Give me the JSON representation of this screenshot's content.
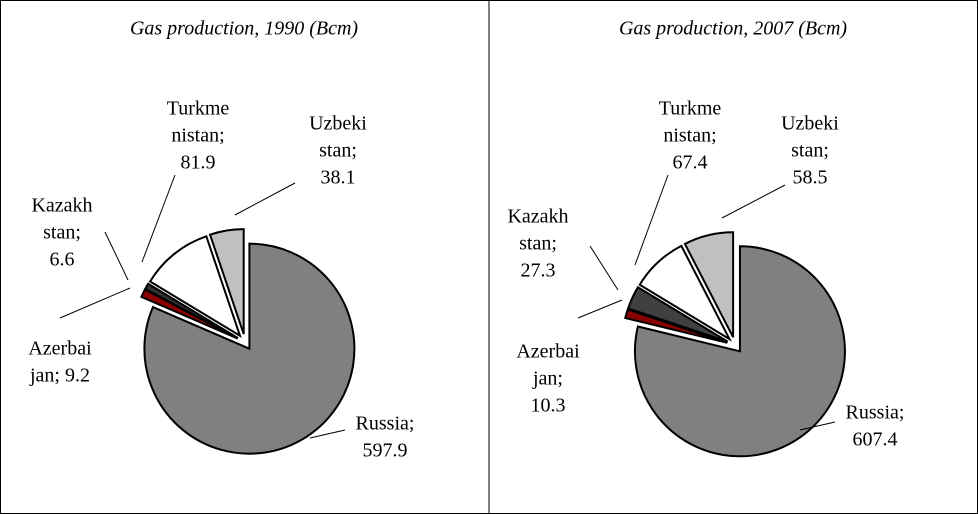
{
  "chart_data": [
    {
      "type": "pie",
      "title": "Gas production, 1990 (Bcm)",
      "values": [
        597.9,
        9.2,
        6.6,
        81.9,
        38.1
      ],
      "value_labels": [
        [
          "Russia;",
          "597.9"
        ],
        [
          "Azerbai",
          "jan; 9.2"
        ],
        [
          "Kazakh",
          "stan;",
          "6.6"
        ],
        [
          "Turkme",
          "nistan;",
          "81.9"
        ],
        [
          "Uzbeki",
          "stan;",
          "38.1"
        ]
      ],
      "colors": [
        "#808080",
        "#8b0000",
        "#303030",
        "#ffffff",
        "#c0c0c0"
      ]
    },
    {
      "type": "pie",
      "title": "Gas production, 2007 (Bcm)",
      "values": [
        607.4,
        10.3,
        27.3,
        67.4,
        58.5
      ],
      "value_labels": [
        [
          "Russia;",
          "607.4"
        ],
        [
          "Azerbai",
          "jan;",
          "10.3"
        ],
        [
          "Kazakh",
          "stan;",
          "27.3"
        ],
        [
          "Turkme",
          "nistan;",
          "67.4"
        ],
        [
          "Uzbeki",
          "stan;",
          "58.5"
        ]
      ],
      "colors": [
        "#808080",
        "#8b0000",
        "#404040",
        "#ffffff",
        "#c0c0c0"
      ]
    }
  ]
}
